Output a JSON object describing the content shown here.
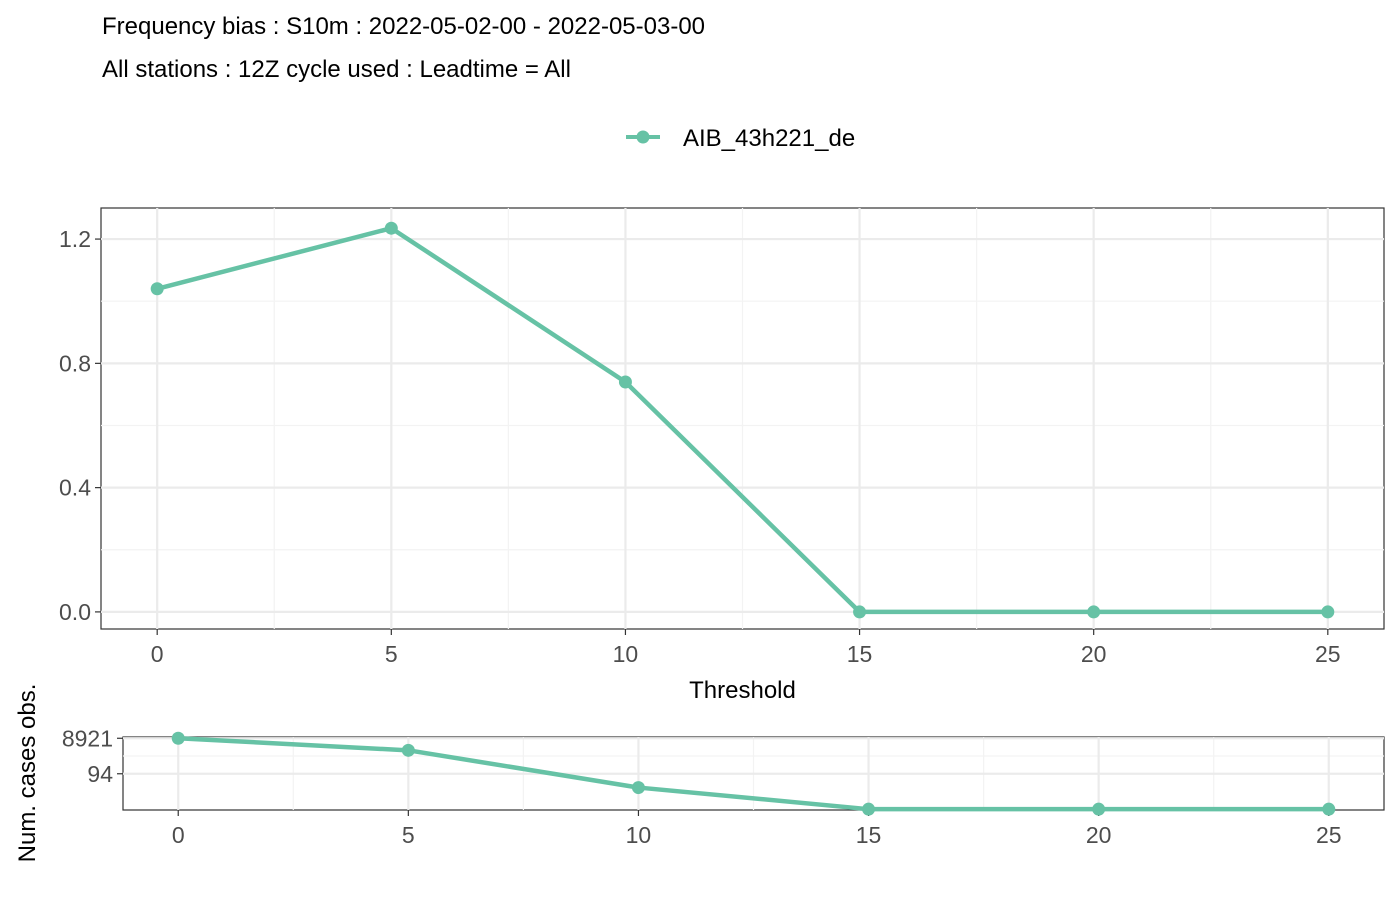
{
  "colors": {
    "series": "#66c2a5"
  },
  "titles": {
    "line1": "Frequency bias : S10m : 2022-05-02-00 - 2022-05-03-00",
    "line2": "All stations : 12Z cycle used : Leadtime = All"
  },
  "legend": {
    "placement": "top-center",
    "label": "AIB_43h221_de"
  },
  "chart_data": [
    {
      "type": "line",
      "xlabel": "Threshold",
      "ylabel": "",
      "x": [
        0,
        5,
        10,
        15,
        20,
        25
      ],
      "x_ticks": [
        "0",
        "5",
        "10",
        "15",
        "20",
        "25"
      ],
      "y_ticks": [
        "0.0",
        "0.4",
        "0.8",
        "1.2"
      ],
      "xlim": [
        -1.2,
        26.2
      ],
      "ylim": [
        -0.055,
        1.3
      ],
      "grid": true,
      "series": [
        {
          "name": "AIB_43h221_de",
          "values": [
            1.04,
            1.235,
            0.74,
            0.0,
            0.0,
            0.0
          ]
        }
      ]
    },
    {
      "type": "line",
      "xlabel": "",
      "ylabel": "Num. cases obs.",
      "x": [
        0,
        5,
        10,
        15,
        20,
        25
      ],
      "x_ticks": [
        "0",
        "5",
        "10",
        "15",
        "20",
        "25"
      ],
      "y_ticks": [
        "8921",
        "94"
      ],
      "y_scale": "log",
      "xlim": [
        -1.2,
        26.2
      ],
      "ylim": [
        0.9,
        10500
      ],
      "grid": true,
      "series": [
        {
          "name": "AIB_43h221_de",
          "values": [
            8921,
            1900,
            16,
            1,
            1,
            1
          ]
        }
      ]
    }
  ]
}
